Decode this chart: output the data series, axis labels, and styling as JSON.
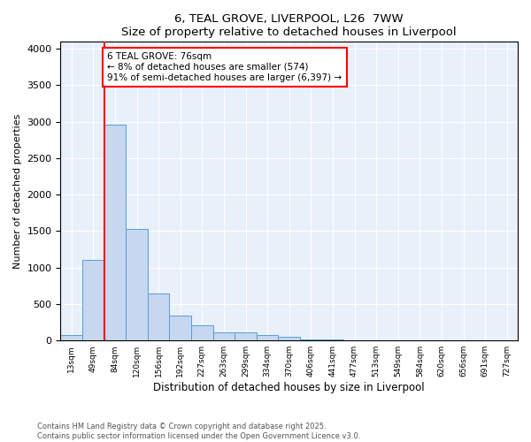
{
  "title": "6, TEAL GROVE, LIVERPOOL, L26  7WW",
  "subtitle": "Size of property relative to detached houses in Liverpool",
  "xlabel": "Distribution of detached houses by size in Liverpool",
  "ylabel": "Number of detached properties",
  "bar_labels": [
    "13sqm",
    "49sqm",
    "84sqm",
    "120sqm",
    "156sqm",
    "192sqm",
    "227sqm",
    "263sqm",
    "299sqm",
    "334sqm",
    "370sqm",
    "406sqm",
    "441sqm",
    "477sqm",
    "513sqm",
    "549sqm",
    "584sqm",
    "620sqm",
    "656sqm",
    "691sqm",
    "727sqm"
  ],
  "bar_values": [
    75,
    1100,
    2960,
    1530,
    650,
    340,
    210,
    110,
    110,
    75,
    45,
    20,
    20,
    0,
    0,
    0,
    0,
    0,
    0,
    0,
    0
  ],
  "bar_color": "#c5d8f0",
  "bar_edge_color": "#5b9bd5",
  "annotation_text": "6 TEAL GROVE: 76sqm\n← 8% of detached houses are smaller (574)\n91% of semi-detached houses are larger (6,397) →",
  "vline_x": 2.0,
  "vline_color": "red",
  "annotation_box_color": "white",
  "annotation_box_edge": "red",
  "ylim": [
    0,
    4100
  ],
  "yticks": [
    0,
    500,
    1000,
    1500,
    2000,
    2500,
    3000,
    3500,
    4000
  ],
  "footer": "Contains HM Land Registry data © Crown copyright and database right 2025.\nContains public sector information licensed under the Open Government Licence v3.0.",
  "bg_color": "#ffffff",
  "plot_bg_color": "#e8f0fa"
}
